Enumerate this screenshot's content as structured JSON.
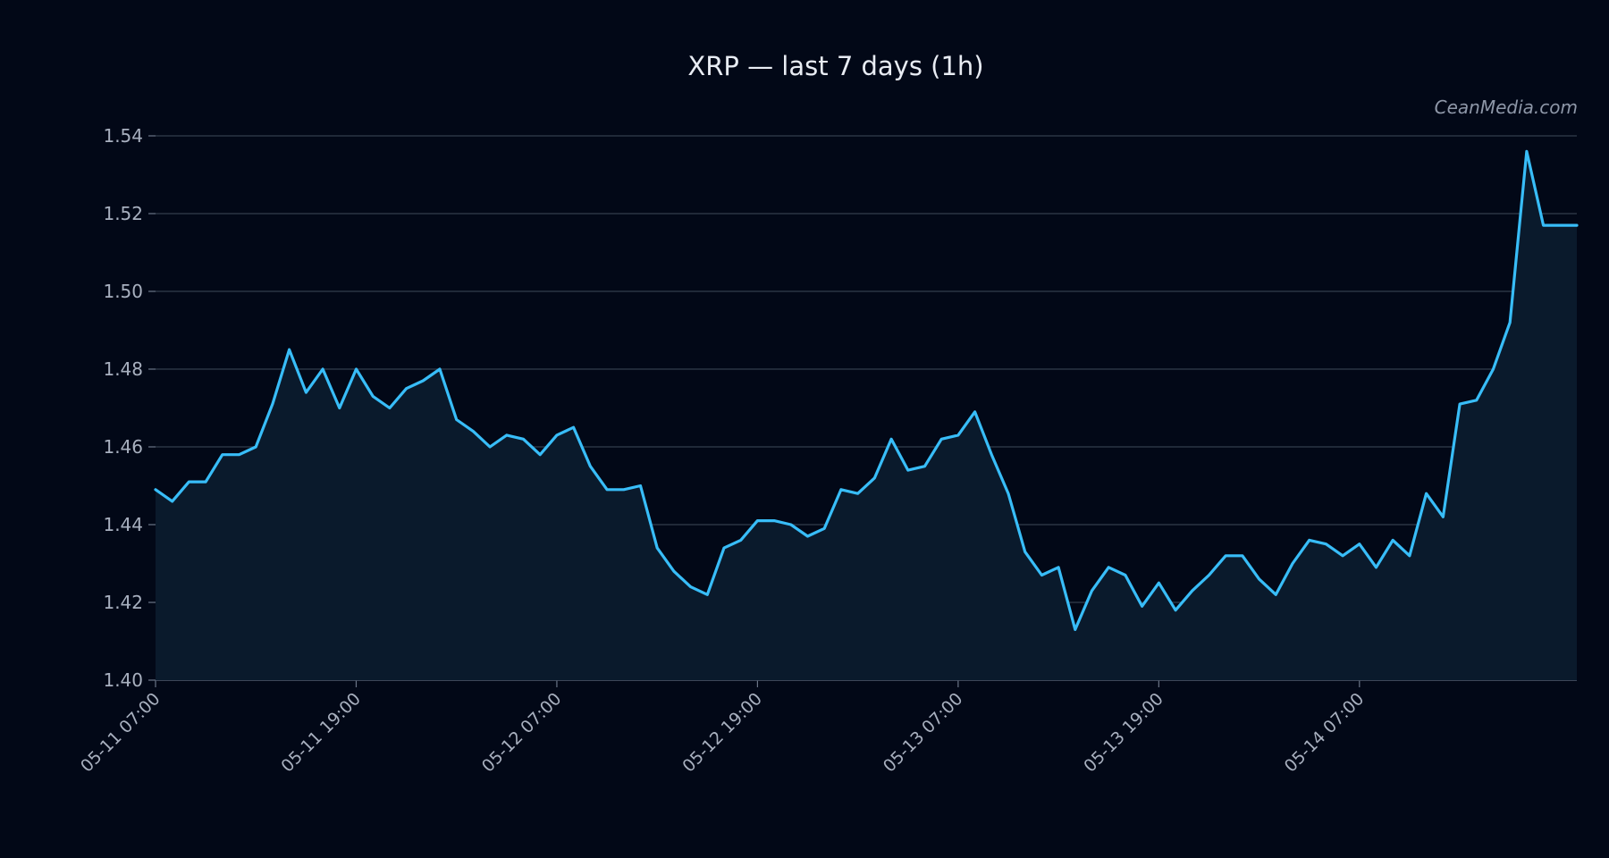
{
  "chart_data": {
    "type": "area",
    "title": "XRP — last 7 days (1h)",
    "watermark": "CeanMedia.com",
    "xlabel": "",
    "ylabel": "",
    "ylim": [
      1.4,
      1.54
    ],
    "yticks": [
      1.4,
      1.42,
      1.44,
      1.46,
      1.48,
      1.5,
      1.52,
      1.54
    ],
    "ytick_labels": [
      "1.40",
      "1.42",
      "1.44",
      "1.46",
      "1.48",
      "1.50",
      "1.52",
      "1.54"
    ],
    "xlim": [
      "05-11 07:00",
      "05-14 20:00"
    ],
    "xticks": [
      "05-11 07:00",
      "05-11 19:00",
      "05-12 07:00",
      "05-12 19:00",
      "05-13 07:00",
      "05-13 19:00",
      "05-14 07:00"
    ],
    "grid": true,
    "colors": {
      "background": "#020817",
      "line": "#38bdf8",
      "fill": "#0a1a2c",
      "grid": "#2a3444"
    },
    "series": [
      {
        "x": [
          "05-11 07:00",
          "05-11 08:00",
          "05-11 09:00",
          "05-11 10:00",
          "05-11 11:00",
          "05-11 12:00",
          "05-11 13:00",
          "05-11 14:00",
          "05-11 15:00",
          "05-11 16:00",
          "05-11 17:00",
          "05-11 18:00",
          "05-11 19:00",
          "05-11 20:00",
          "05-11 21:00",
          "05-11 22:00",
          "05-11 23:00",
          "05-12 00:00",
          "05-12 01:00",
          "05-12 02:00",
          "05-12 03:00",
          "05-12 04:00",
          "05-12 05:00",
          "05-12 06:00",
          "05-12 07:00",
          "05-12 08:00",
          "05-12 09:00",
          "05-12 10:00",
          "05-12 11:00",
          "05-12 12:00",
          "05-12 13:00",
          "05-12 14:00",
          "05-12 15:00",
          "05-12 16:00",
          "05-12 17:00",
          "05-12 18:00",
          "05-12 19:00",
          "05-12 20:00",
          "05-12 21:00",
          "05-12 22:00",
          "05-12 23:00",
          "05-13 00:00",
          "05-13 01:00",
          "05-13 02:00",
          "05-13 03:00",
          "05-13 04:00",
          "05-13 05:00",
          "05-13 06:00",
          "05-13 07:00",
          "05-13 08:00",
          "05-13 09:00",
          "05-13 10:00",
          "05-13 11:00",
          "05-13 12:00",
          "05-13 13:00",
          "05-13 14:00",
          "05-13 15:00",
          "05-13 16:00",
          "05-13 17:00",
          "05-13 18:00",
          "05-13 19:00",
          "05-13 20:00",
          "05-13 21:00",
          "05-13 22:00",
          "05-13 23:00",
          "05-14 00:00",
          "05-14 01:00",
          "05-14 02:00",
          "05-14 03:00",
          "05-14 04:00",
          "05-14 05:00",
          "05-14 06:00",
          "05-14 07:00",
          "05-14 08:00",
          "05-14 09:00",
          "05-14 10:00",
          "05-14 11:00",
          "05-14 12:00",
          "05-14 13:00",
          "05-14 14:00",
          "05-14 15:00",
          "05-14 16:00",
          "05-14 17:00",
          "05-14 18:00",
          "05-14 19:00",
          "05-14 20:00"
        ],
        "values": [
          1.449,
          1.446,
          1.451,
          1.451,
          1.458,
          1.458,
          1.46,
          1.471,
          1.485,
          1.474,
          1.48,
          1.47,
          1.48,
          1.473,
          1.47,
          1.475,
          1.477,
          1.48,
          1.467,
          1.464,
          1.46,
          1.463,
          1.462,
          1.458,
          1.463,
          1.465,
          1.455,
          1.449,
          1.449,
          1.45,
          1.434,
          1.428,
          1.424,
          1.422,
          1.434,
          1.436,
          1.441,
          1.441,
          1.44,
          1.437,
          1.439,
          1.449,
          1.448,
          1.452,
          1.462,
          1.454,
          1.455,
          1.462,
          1.463,
          1.469,
          1.458,
          1.448,
          1.433,
          1.427,
          1.429,
          1.413,
          1.423,
          1.429,
          1.427,
          1.419,
          1.425,
          1.418,
          1.423,
          1.427,
          1.432,
          1.432,
          1.426,
          1.422,
          1.43,
          1.436,
          1.435,
          1.432,
          1.435,
          1.429,
          1.436,
          1.432,
          1.448,
          1.442,
          1.471,
          1.472,
          1.48,
          1.492,
          1.536,
          1.517,
          1.517,
          1.517
        ]
      }
    ]
  }
}
